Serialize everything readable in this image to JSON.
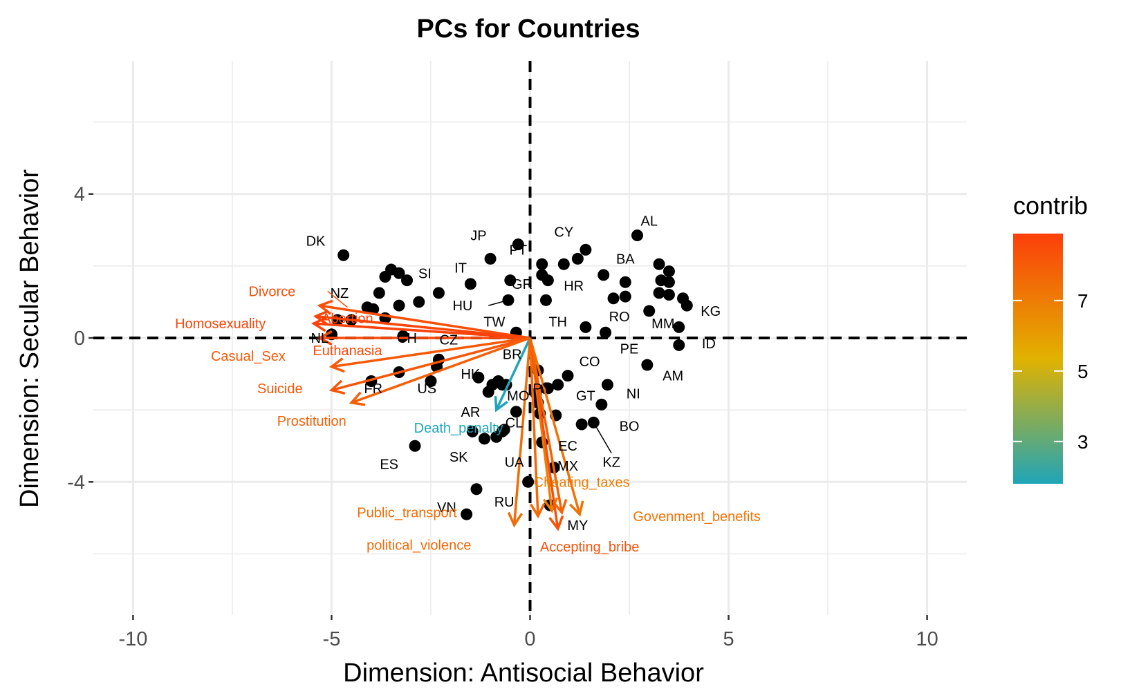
{
  "chart_data": {
    "type": "scatter",
    "title": "PCs for Countries",
    "xlabel": "Dimension: Antisocial Behavior",
    "ylabel": "Dimension: Secular Behavior",
    "xlim": [
      -11,
      11
    ],
    "ylim": [
      -7.7,
      7.7
    ],
    "x_ticks": [
      -10,
      -5,
      0,
      5,
      10
    ],
    "x_tick_labels": [
      "-10",
      "-5",
      "0",
      "5",
      "10"
    ],
    "y_ticks": [
      -4,
      0,
      4
    ],
    "y_tick_labels": [
      "-4",
      "0",
      "4"
    ],
    "grid": true,
    "reference_lines": {
      "x": 0,
      "y": 0,
      "style": "dashed"
    },
    "legend": {
      "title": "contrib",
      "position": "right",
      "min": 1.8,
      "max": 8.9,
      "breaks": [
        3,
        5,
        7
      ],
      "break_labels": [
        "3",
        "5",
        "7"
      ],
      "colors": [
        "#1fa5b8",
        "#e1b200",
        "#fc3f0a"
      ]
    },
    "countries": [
      {
        "label": "DK",
        "x": -4.7,
        "y": 2.3
      },
      {
        "label": "NZ",
        "x": -4.5,
        "y": 0.5
      },
      {
        "label": "NL",
        "x": -5.0,
        "y": 0.1
      },
      {
        "label": "CH",
        "x": -3.2,
        "y": 0.05
      },
      {
        "label": "SI",
        "x": -3.1,
        "y": 1.6
      },
      {
        "label": "CZ",
        "x": -2.3,
        "y": -0.6
      },
      {
        "label": "FR",
        "x": -4.0,
        "y": -1.2
      },
      {
        "label": "US",
        "x": -2.5,
        "y": -1.2
      },
      {
        "label": "ES",
        "x": -2.9,
        "y": -3.0
      },
      {
        "label": "JP",
        "x": -1.0,
        "y": 2.2
      },
      {
        "label": "IT",
        "x": -1.5,
        "y": 1.5
      },
      {
        "label": "PT",
        "x": -0.3,
        "y": 2.6
      },
      {
        "label": "GR",
        "x": -0.5,
        "y": 1.6
      },
      {
        "label": "HU",
        "x": -0.55,
        "y": 1.05
      },
      {
        "label": "TW",
        "x": -0.35,
        "y": 0.15
      },
      {
        "label": "HK",
        "x": -1.05,
        "y": -1.5
      },
      {
        "label": "BR",
        "x": -0.8,
        "y": -1.2
      },
      {
        "label": "AR",
        "x": -1.15,
        "y": -2.8
      },
      {
        "label": "MO",
        "x": -0.6,
        "y": -1.3
      },
      {
        "label": "SK",
        "x": -1.35,
        "y": -4.2
      },
      {
        "label": "UA",
        "x": -0.7,
        "y": -2.6
      },
      {
        "label": "CL",
        "x": -0.65,
        "y": -2.55
      },
      {
        "label": "VN",
        "x": -1.6,
        "y": -4.9
      },
      {
        "label": "RU",
        "x": -0.05,
        "y": -4.0
      },
      {
        "label": "CY",
        "x": 1.4,
        "y": 2.45
      },
      {
        "label": "HR",
        "x": 0.4,
        "y": 1.05
      },
      {
        "label": "TH",
        "x": 1.4,
        "y": 0.3
      },
      {
        "label": "AL",
        "x": 2.7,
        "y": 2.85
      },
      {
        "label": "BA",
        "x": 1.85,
        "y": 1.75
      },
      {
        "label": "RO",
        "x": 2.1,
        "y": 1.1
      },
      {
        "label": "MM",
        "x": 3.0,
        "y": 0.75
      },
      {
        "label": "KG",
        "x": 3.85,
        "y": 1.1
      },
      {
        "label": "ID",
        "x": 3.75,
        "y": -0.2
      },
      {
        "label": "PE",
        "x": 1.9,
        "y": 0.15
      },
      {
        "label": "AM",
        "x": 2.95,
        "y": -0.75
      },
      {
        "label": "CO",
        "x": 0.95,
        "y": -1.05
      },
      {
        "label": "NI",
        "x": 1.95,
        "y": -1.3
      },
      {
        "label": "GT",
        "x": 1.8,
        "y": -1.85
      },
      {
        "label": "BO",
        "x": 1.3,
        "y": -2.4
      },
      {
        "label": "KZ",
        "x": 1.6,
        "y": -2.35
      },
      {
        "label": "PY",
        "x": 0.4,
        "y": -1.4
      },
      {
        "label": "EC",
        "x": 0.3,
        "y": -2.9
      },
      {
        "label": "MX",
        "x": 0.6,
        "y": -3.6
      },
      {
        "label": "MY",
        "x": 0.5,
        "y": -4.65
      }
    ],
    "unlabeled_points": [
      {
        "x": -3.8,
        "y": 1.25
      },
      {
        "x": -3.5,
        "y": 1.9
      },
      {
        "x": -3.3,
        "y": 1.8
      },
      {
        "x": -3.65,
        "y": 1.7
      },
      {
        "x": -2.8,
        "y": 1.0
      },
      {
        "x": -2.3,
        "y": 1.25
      },
      {
        "x": -4.1,
        "y": 0.85
      },
      {
        "x": -3.95,
        "y": 0.8
      },
      {
        "x": -3.3,
        "y": 0.9
      },
      {
        "x": -3.65,
        "y": 0.55
      },
      {
        "x": -4.85,
        "y": 0.5
      },
      {
        "x": -2.35,
        "y": -0.8
      },
      {
        "x": -3.3,
        "y": -0.95
      },
      {
        "x": -1.3,
        "y": -1.1
      },
      {
        "x": -0.95,
        "y": -1.3
      },
      {
        "x": -0.7,
        "y": -1.3
      },
      {
        "x": 0.3,
        "y": 2.05
      },
      {
        "x": 0.85,
        "y": 2.05
      },
      {
        "x": 1.2,
        "y": 2.2
      },
      {
        "x": 0.3,
        "y": 1.75
      },
      {
        "x": 0.45,
        "y": 1.6
      },
      {
        "x": 3.25,
        "y": 2.05
      },
      {
        "x": 3.5,
        "y": 1.85
      },
      {
        "x": 3.3,
        "y": 1.6
      },
      {
        "x": 3.5,
        "y": 1.55
      },
      {
        "x": 3.25,
        "y": 1.25
      },
      {
        "x": 3.5,
        "y": 1.2
      },
      {
        "x": 2.4,
        "y": 1.55
      },
      {
        "x": 2.4,
        "y": 1.15
      },
      {
        "x": 3.95,
        "y": 0.9
      },
      {
        "x": 3.75,
        "y": 0.3
      },
      {
        "x": 0.2,
        "y": -0.9
      },
      {
        "x": 0.7,
        "y": -1.3
      },
      {
        "x": 0.45,
        "y": -1.4
      },
      {
        "x": 0.2,
        "y": -1.8
      },
      {
        "x": 0.25,
        "y": -2.1
      },
      {
        "x": 0.65,
        "y": -2.15
      },
      {
        "x": 0.15,
        "y": -1.55
      },
      {
        "x": -0.35,
        "y": -2.05
      },
      {
        "x": -1.45,
        "y": -2.6
      },
      {
        "x": -0.85,
        "y": -2.75
      }
    ],
    "variables": [
      {
        "label": "Divorce",
        "x": -5.3,
        "y": 0.9,
        "contrib": 8.4
      },
      {
        "label": "Homosexuality",
        "x": -5.4,
        "y": 0.6,
        "contrib": 8.7
      },
      {
        "label": "Abortion",
        "x": -5.45,
        "y": 0.4,
        "contrib": 8.8
      },
      {
        "label": "Euthanasia",
        "x": -5.3,
        "y": 0.0,
        "contrib": 8.6
      },
      {
        "label": "Casual_Sex",
        "x": -5.0,
        "y": -0.8,
        "contrib": 8.1
      },
      {
        "label": "Suicide",
        "x": -5.0,
        "y": -1.45,
        "contrib": 8.2
      },
      {
        "label": "Prostitution",
        "x": -4.5,
        "y": -1.8,
        "contrib": 7.9
      },
      {
        "label": "Death_penalty",
        "x": -0.85,
        "y": -2.0,
        "contrib": 1.8
      },
      {
        "label": "Public_transport",
        "x": -0.4,
        "y": -5.2,
        "contrib": 7.5
      },
      {
        "label": "political_violence",
        "x": 0.2,
        "y": -4.95,
        "contrib": 7.6
      },
      {
        "label": "Cheating_taxes",
        "x": 0.55,
        "y": -4.8,
        "contrib": 7.0
      },
      {
        "label": "Accepting_bribe",
        "x": 0.7,
        "y": -5.3,
        "contrib": 8.3
      },
      {
        "label": "Govenment_benefits",
        "x": 1.25,
        "y": -4.9,
        "contrib": 7.3
      },
      {
        "label": "MX-arrow",
        "x": 0.8,
        "y": -4.85,
        "contrib": 7.8
      }
    ],
    "variable_label_positions": {
      "Divorce": [
        -6.5,
        1.3
      ],
      "Homosexuality": [
        -7.8,
        0.4
      ],
      "Abortion": [
        -4.6,
        0.55
      ],
      "Euthanasia": [
        -4.6,
        -0.35
      ],
      "Casual_Sex": [
        -7.1,
        -0.5
      ],
      "Suicide": [
        -6.3,
        -1.4
      ],
      "Prostitution": [
        -5.5,
        -2.3
      ],
      "Death_penalty": [
        -1.8,
        -2.5
      ],
      "Public_transport": [
        -3.1,
        -4.85
      ],
      "political_violence": [
        -2.8,
        -5.75
      ],
      "Cheating_taxes": [
        1.3,
        -4.0
      ],
      "Accepting_bribe": [
        1.5,
        -5.8
      ],
      "Govenment_benefits": [
        4.2,
        -4.95
      ]
    },
    "country_label_positions": {
      "DK": [
        -5.4,
        2.7
      ],
      "NZ": [
        -4.8,
        1.25
      ],
      "NL": [
        -5.3,
        0.0
      ],
      "CH": [
        -3.1,
        0.0
      ],
      "SI": [
        -2.65,
        1.8
      ],
      "CZ": [
        -2.05,
        -0.05
      ],
      "FR": [
        -3.95,
        -1.4
      ],
      "US": [
        -2.6,
        -1.4
      ],
      "ES": [
        -3.55,
        -3.5
      ],
      "JP": [
        -1.3,
        2.85
      ],
      "IT": [
        -1.75,
        1.95
      ],
      "PT": [
        -0.3,
        2.45
      ],
      "GR": [
        -0.2,
        1.5
      ],
      "HU": [
        -1.7,
        0.9
      ],
      "TW": [
        -0.9,
        0.45
      ],
      "HK": [
        -1.5,
        -1.0
      ],
      "BR": [
        -0.45,
        -0.45
      ],
      "AR": [
        -1.5,
        -2.05
      ],
      "MO": [
        -0.3,
        -1.6
      ],
      "SK": [
        -1.8,
        -3.3
      ],
      "UA": [
        -0.4,
        -3.45
      ],
      "CL": [
        -0.4,
        -2.35
      ],
      "VN": [
        -2.1,
        -4.7
      ],
      "RU": [
        -0.65,
        -4.55
      ],
      "CY": [
        0.85,
        2.95
      ],
      "HR": [
        1.1,
        1.45
      ],
      "TH": [
        0.7,
        0.45
      ],
      "AL": [
        3.0,
        3.25
      ],
      "BA": [
        2.4,
        2.2
      ],
      "RO": [
        2.25,
        0.6
      ],
      "MM": [
        3.35,
        0.4
      ],
      "KG": [
        4.55,
        0.75
      ],
      "ID": [
        4.5,
        -0.15
      ],
      "PE": [
        2.5,
        -0.3
      ],
      "AM": [
        3.6,
        -1.05
      ],
      "CO": [
        1.5,
        -0.65
      ],
      "NI": [
        2.6,
        -1.55
      ],
      "GT": [
        1.4,
        -1.6
      ],
      "BO": [
        2.5,
        -2.45
      ],
      "KZ": [
        2.05,
        -3.45
      ],
      "PY": [
        0.3,
        -1.4
      ],
      "EC": [
        0.95,
        -3.0
      ],
      "MX": [
        0.95,
        -3.55
      ],
      "MY": [
        1.2,
        -5.2
      ]
    }
  }
}
